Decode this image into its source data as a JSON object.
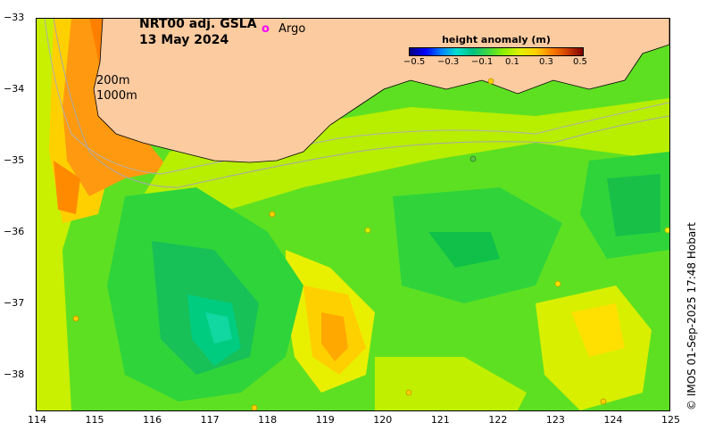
{
  "title": {
    "product": "NRT00 adj. GSLA",
    "date": "13 May 2024"
  },
  "legend": {
    "argo_symbol": "o",
    "argo_label": "Argo",
    "argo_color": "#ff00ff"
  },
  "colorbar": {
    "title": "height anomaly (m)",
    "ticks": [
      "−0.5",
      "−0.3",
      "−0.1",
      "0.1",
      "0.3",
      "0.5"
    ],
    "colors": [
      "#00007f",
      "#0000ff",
      "#0080ff",
      "#00e0d0",
      "#00c080",
      "#40d840",
      "#90f000",
      "#e0f000",
      "#ffd000",
      "#ff8000",
      "#d04000",
      "#800000"
    ]
  },
  "contour_labels": [
    "200m",
    "1000m"
  ],
  "axes": {
    "x_ticks": [
      "114",
      "115",
      "116",
      "117",
      "118",
      "119",
      "120",
      "121",
      "122",
      "123",
      "124",
      "125"
    ],
    "y_ticks": [
      "−33",
      "−34",
      "−35",
      "−36",
      "−37",
      "−38"
    ],
    "lon_range": [
      114,
      125
    ],
    "lat_range": [
      -38.5,
      -33
    ]
  },
  "footer": "© IMOS 01-Sep-2025 17:48 Hobart",
  "colors": {
    "land": "#fccba0",
    "ocean_base": "#66dd22"
  }
}
